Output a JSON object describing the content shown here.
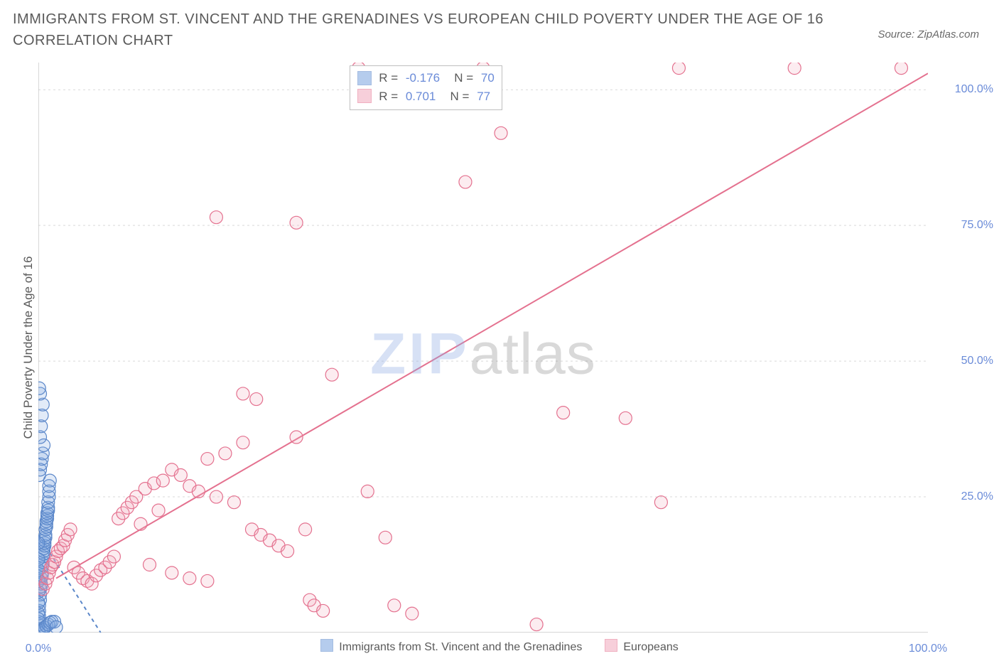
{
  "title": "IMMIGRANTS FROM ST. VINCENT AND THE GRENADINES VS EUROPEAN CHILD POVERTY UNDER THE AGE OF 16 CORRELATION CHART",
  "source_label": "Source: ZipAtlas.com",
  "y_axis_label": "Child Poverty Under the Age of 16",
  "watermark_a": "ZIP",
  "watermark_b": "atlas",
  "chart": {
    "type": "scatter",
    "background_color": "#ffffff",
    "grid_color": "#d9d9d9",
    "grid_dash": "3,4",
    "axis_color": "#bfbfbf",
    "tick_label_color": "#6a8bd8",
    "text_color": "#5a5a5a",
    "title_fontsize": 20,
    "label_fontsize": 17,
    "tick_fontsize": 16,
    "xlim": [
      0,
      100
    ],
    "ylim": [
      0,
      105
    ],
    "x_ticks": [
      0,
      20,
      40,
      60,
      80,
      100
    ],
    "x_tick_labels": [
      "0.0%",
      "",
      "",
      "",
      "",
      "100.0%"
    ],
    "y_ticks": [
      25,
      50,
      75,
      100
    ],
    "y_tick_labels": [
      "25.0%",
      "50.0%",
      "75.0%",
      "100.0%"
    ],
    "marker_radius": 9,
    "marker_stroke_width": 1.2,
    "marker_fill_opacity": 0.22
  },
  "series": [
    {
      "id": "immigrants",
      "legend_label": "Immigrants from St. Vincent and the Grenadines",
      "color": "#7aa3e0",
      "stroke": "#5b87c9",
      "r_value": "-0.176",
      "n_value": "70",
      "regression": {
        "x1": 0,
        "y1": 18,
        "x2": 7,
        "y2": 0,
        "dashed": true
      },
      "points": [
        [
          0.0,
          0.5
        ],
        [
          0.0,
          1.5
        ],
        [
          0.0,
          2.0
        ],
        [
          0.1,
          3.0
        ],
        [
          0.1,
          4.0
        ],
        [
          0.1,
          5.0
        ],
        [
          0.2,
          6.0
        ],
        [
          0.2,
          7.0
        ],
        [
          0.2,
          8.0
        ],
        [
          0.3,
          8.5
        ],
        [
          0.3,
          9.0
        ],
        [
          0.3,
          10.0
        ],
        [
          0.4,
          10.5
        ],
        [
          0.4,
          11.0
        ],
        [
          0.4,
          12.0
        ],
        [
          0.5,
          12.5
        ],
        [
          0.5,
          13.0
        ],
        [
          0.5,
          14.0
        ],
        [
          0.6,
          14.5
        ],
        [
          0.6,
          15.0
        ],
        [
          0.6,
          15.5
        ],
        [
          0.7,
          16.0
        ],
        [
          0.7,
          16.5
        ],
        [
          0.7,
          17.0
        ],
        [
          0.8,
          17.5
        ],
        [
          0.8,
          18.0
        ],
        [
          0.8,
          19.0
        ],
        [
          0.9,
          19.5
        ],
        [
          0.9,
          20.0
        ],
        [
          0.9,
          20.5
        ],
        [
          1.0,
          21.0
        ],
        [
          1.0,
          21.5
        ],
        [
          1.0,
          22.0
        ],
        [
          1.1,
          22.5
        ],
        [
          1.1,
          23.0
        ],
        [
          1.1,
          24.0
        ],
        [
          1.2,
          25.0
        ],
        [
          1.2,
          26.0
        ],
        [
          1.2,
          27.0
        ],
        [
          1.3,
          28.0
        ],
        [
          0.1,
          29.0
        ],
        [
          0.2,
          30.0
        ],
        [
          0.3,
          31.0
        ],
        [
          0.4,
          32.0
        ],
        [
          0.5,
          33.0
        ],
        [
          0.6,
          34.5
        ],
        [
          0.2,
          36.0
        ],
        [
          0.3,
          38.0
        ],
        [
          0.4,
          40.0
        ],
        [
          0.5,
          42.0
        ],
        [
          0.2,
          44.0
        ],
        [
          0.1,
          45.0
        ],
        [
          0.0,
          3.5
        ],
        [
          0.0,
          5.5
        ],
        [
          0.0,
          7.5
        ],
        [
          0.0,
          9.5
        ],
        [
          0.0,
          11.5
        ],
        [
          0.0,
          13.5
        ],
        [
          0.0,
          16.5
        ],
        [
          0.0,
          2.5
        ],
        [
          0.1,
          0.0
        ],
        [
          0.3,
          0.3
        ],
        [
          0.5,
          0.6
        ],
        [
          0.7,
          0.9
        ],
        [
          0.9,
          1.2
        ],
        [
          1.1,
          1.5
        ],
        [
          1.3,
          1.8
        ],
        [
          1.5,
          2.0
        ],
        [
          1.8,
          2.0
        ],
        [
          2.0,
          1.0
        ]
      ]
    },
    {
      "id": "europeans",
      "legend_label": "Europeans",
      "color": "#f2a9bc",
      "stroke": "#e4718f",
      "r_value": "0.701",
      "n_value": "77",
      "regression": {
        "x1": 2,
        "y1": 10,
        "x2": 100,
        "y2": 103,
        "dashed": false
      },
      "points": [
        [
          0.5,
          8.0
        ],
        [
          0.8,
          9.0
        ],
        [
          1.0,
          10.0
        ],
        [
          1.2,
          11.0
        ],
        [
          1.4,
          12.0
        ],
        [
          1.6,
          12.5
        ],
        [
          1.8,
          13.0
        ],
        [
          2.0,
          14.0
        ],
        [
          2.2,
          15.0
        ],
        [
          2.5,
          15.5
        ],
        [
          2.8,
          16.0
        ],
        [
          3.0,
          17.0
        ],
        [
          3.3,
          18.0
        ],
        [
          3.6,
          19.0
        ],
        [
          4.0,
          12.0
        ],
        [
          4.5,
          11.0
        ],
        [
          5.0,
          10.0
        ],
        [
          5.5,
          9.5
        ],
        [
          6.0,
          9.0
        ],
        [
          6.5,
          10.5
        ],
        [
          7.0,
          11.5
        ],
        [
          7.5,
          12.0
        ],
        [
          8.0,
          13.0
        ],
        [
          8.5,
          14.0
        ],
        [
          9.0,
          21.0
        ],
        [
          9.5,
          22.0
        ],
        [
          10.0,
          23.0
        ],
        [
          10.5,
          24.0
        ],
        [
          11.0,
          25.0
        ],
        [
          12.0,
          26.5
        ],
        [
          13.0,
          27.5
        ],
        [
          14.0,
          28.0
        ],
        [
          15.0,
          30.0
        ],
        [
          16.0,
          29.0
        ],
        [
          17.0,
          27.0
        ],
        [
          18.0,
          26.0
        ],
        [
          19.0,
          32.0
        ],
        [
          20.0,
          25.0
        ],
        [
          21.0,
          33.0
        ],
        [
          22.0,
          24.0
        ],
        [
          23.0,
          35.0
        ],
        [
          24.0,
          19.0
        ],
        [
          25.0,
          18.0
        ],
        [
          26.0,
          17.0
        ],
        [
          27.0,
          16.0
        ],
        [
          28.0,
          15.0
        ],
        [
          29.0,
          36.0
        ],
        [
          15.0,
          11.0
        ],
        [
          17.0,
          10.0
        ],
        [
          19.0,
          9.5
        ],
        [
          30.0,
          19.0
        ],
        [
          30.5,
          6.0
        ],
        [
          31.0,
          5.0
        ],
        [
          32.0,
          4.0
        ],
        [
          23.0,
          44.0
        ],
        [
          24.5,
          43.0
        ],
        [
          20.0,
          76.5
        ],
        [
          29.0,
          75.5
        ],
        [
          33.0,
          47.5
        ],
        [
          36.0,
          104.0
        ],
        [
          37.0,
          26.0
        ],
        [
          39.0,
          17.5
        ],
        [
          40.0,
          5.0
        ],
        [
          42.0,
          3.5
        ],
        [
          50.0,
          104.0
        ],
        [
          52.0,
          92.0
        ],
        [
          48.0,
          83.0
        ],
        [
          56.0,
          1.5
        ],
        [
          66.0,
          39.5
        ],
        [
          59.0,
          40.5
        ],
        [
          70.0,
          24.0
        ],
        [
          72.0,
          104.0
        ],
        [
          85.0,
          104.0
        ],
        [
          97.0,
          104.0
        ],
        [
          13.5,
          22.5
        ],
        [
          11.5,
          20.0
        ],
        [
          12.5,
          12.5
        ]
      ]
    }
  ],
  "stats_box": {
    "labels": {
      "r": "R =",
      "n": "N ="
    },
    "left_pct": 35,
    "top_pct": 0.5
  },
  "bottom_legend_items": [
    {
      "series": 0
    },
    {
      "series": 1
    }
  ]
}
